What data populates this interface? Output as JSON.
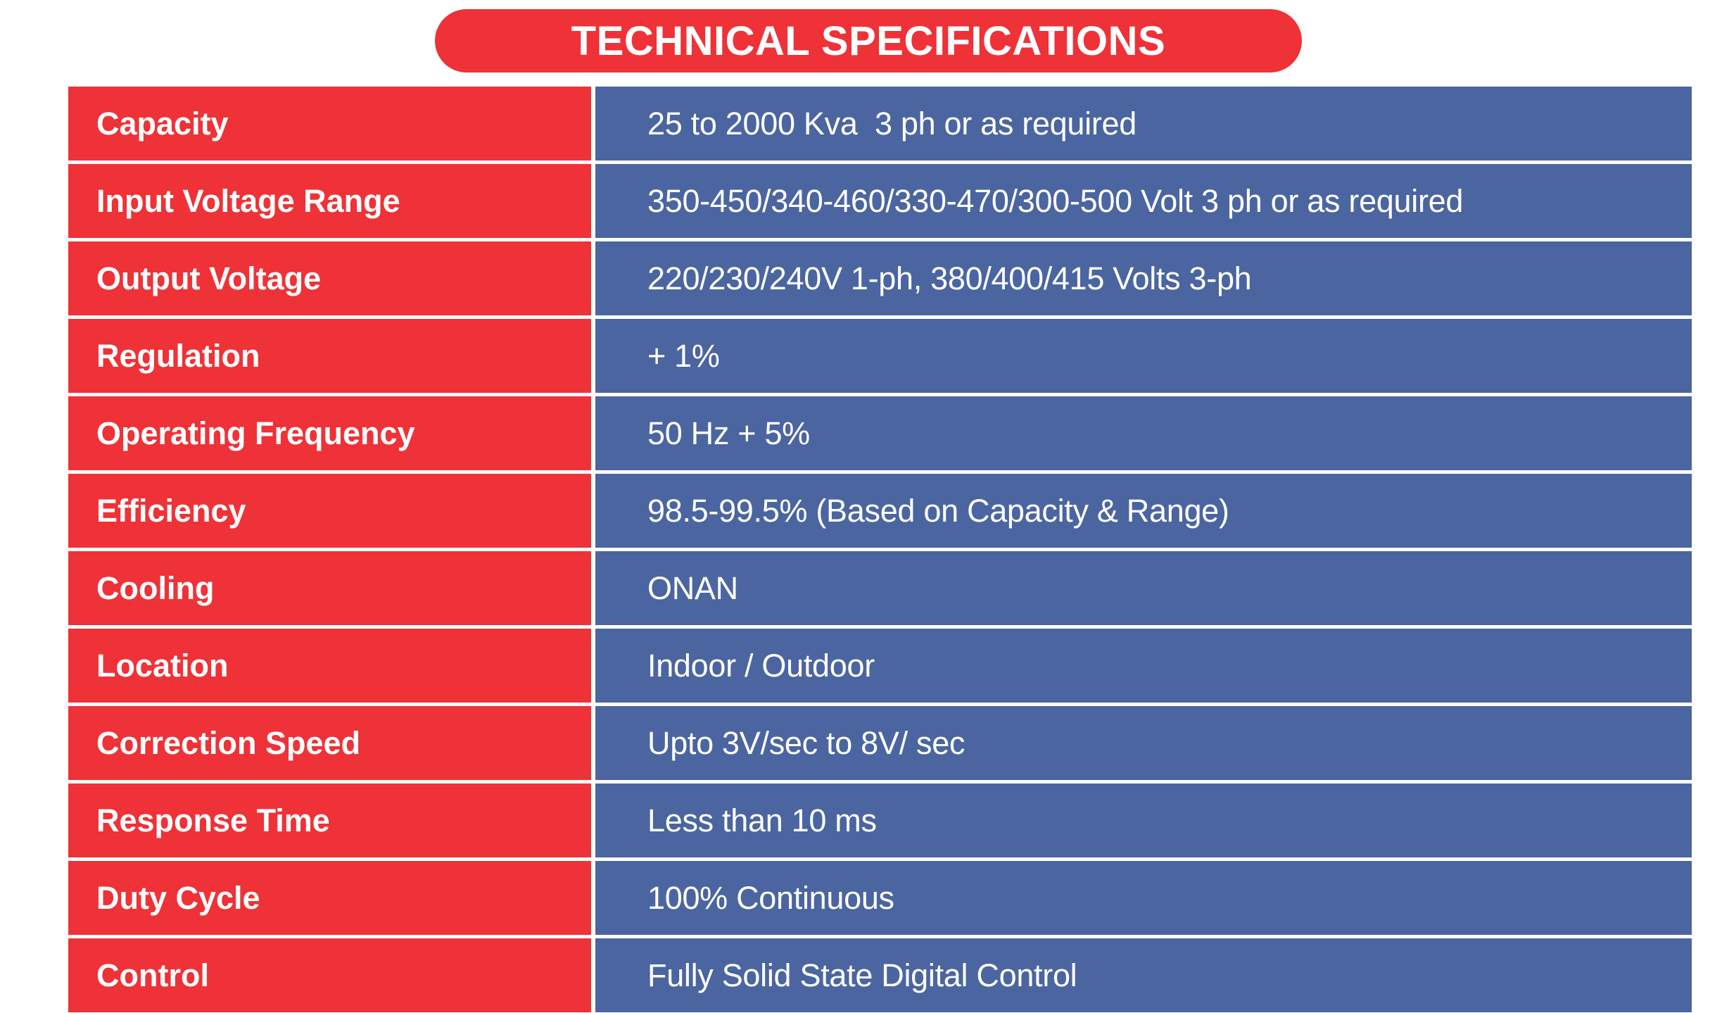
{
  "title": "TECHNICAL SPECIFICATIONS",
  "colors": {
    "red": "#EE3237",
    "blue": "#4B65A0",
    "text_on_color": "#FFFFFF",
    "background": "#FFFFFF"
  },
  "table": {
    "rows": [
      {
        "label": "Capacity",
        "value": "25 to 2000 Kva  3 ph or as required"
      },
      {
        "label": "Input Voltage Range",
        "value": "350-450/340-460/330-470/300-500 Volt 3 ph or as required"
      },
      {
        "label": "Output Voltage",
        "value": "220/230/240V 1-ph, 380/400/415 Volts 3-ph"
      },
      {
        "label": "Regulation",
        "value": "+ 1%"
      },
      {
        "label": "Operating Frequency",
        "value": "50 Hz + 5%"
      },
      {
        "label": "Efficiency",
        "value": "98.5-99.5% (Based on Capacity & Range)"
      },
      {
        "label": "Cooling",
        "value": "ONAN"
      },
      {
        "label": "Location",
        "value": "Indoor / Outdoor"
      },
      {
        "label": "Correction Speed",
        "value": "Upto 3V/sec to 8V/ sec"
      },
      {
        "label": "Response Time",
        "value": "Less than 10 ms"
      },
      {
        "label": "Duty Cycle",
        "value": "100% Continuous"
      },
      {
        "label": "Control",
        "value": "Fully Solid State Digital Control"
      }
    ]
  }
}
